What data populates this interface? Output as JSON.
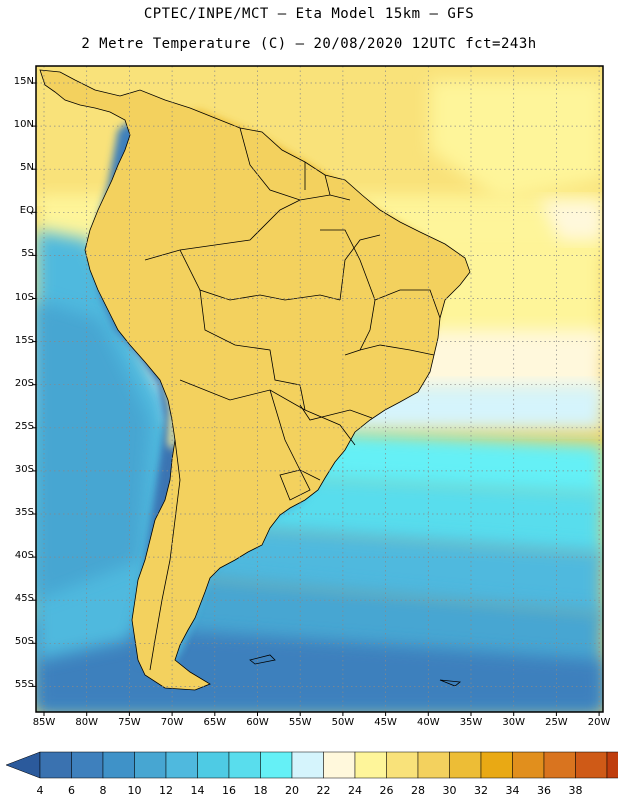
{
  "title_line1": "CPTEC/INPE/MCT –  Eta Model 15km – GFS",
  "title_line2": "2 Metre Temperature (C) – 20/08/2020 12UTC fct=243h",
  "latitude_labels": [
    "15N",
    "10N",
    "5N",
    "EQ",
    "5S",
    "10S",
    "15S",
    "20S",
    "25S",
    "30S",
    "35S",
    "40S",
    "45S",
    "50S",
    "55S"
  ],
  "longitude_labels": [
    "85W",
    "80W",
    "75W",
    "70W",
    "65W",
    "60W",
    "55W",
    "50W",
    "45W",
    "40W",
    "35W",
    "30W",
    "25W",
    "20W"
  ],
  "colorbar": {
    "labels": [
      "4",
      "6",
      "8",
      "10",
      "12",
      "14",
      "16",
      "18",
      "20",
      "22",
      "24",
      "26",
      "28",
      "30",
      "32",
      "34",
      "36",
      "38"
    ],
    "colors": [
      "#3a72b0",
      "#3e80bd",
      "#3f92c8",
      "#47a6d2",
      "#4fb9de",
      "#4ecbe4",
      "#59dded",
      "#65f0f6",
      "#d5f4fc",
      "#fff8dc",
      "#fef59a",
      "#f9e27a",
      "#f3d15e",
      "#edbd36",
      "#e9a914",
      "#e18f1d",
      "#d9741f",
      "#cf5a17",
      "#bf3d0d"
    ],
    "low_color": "#2b5a9c",
    "high_color": "#b5420d"
  },
  "palette": {
    "frame": "#000000",
    "grid": "#888888"
  }
}
